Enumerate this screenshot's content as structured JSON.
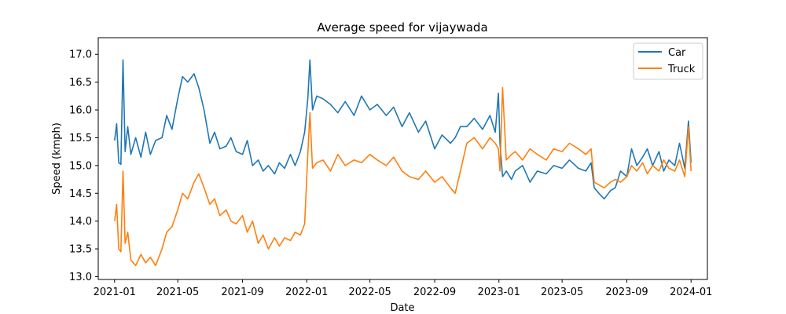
{
  "chart_data": {
    "type": "line",
    "title": "Average speed for vijaywada",
    "xlabel": "Date",
    "ylabel": "Speed (kmph)",
    "x_axis_type": "date",
    "xlim": [
      "2020-12-01",
      "2024-02-01"
    ],
    "ylim": [
      12.95,
      17.3
    ],
    "x_ticks": [
      "2021-01",
      "2021-05",
      "2021-09",
      "2022-01",
      "2022-05",
      "2022-09",
      "2023-01",
      "2023-05",
      "2023-09",
      "2024-01"
    ],
    "y_ticks": [
      "13.0",
      "13.5",
      "14.0",
      "14.5",
      "15.0",
      "15.5",
      "16.0",
      "16.5",
      "17.0"
    ],
    "grid": false,
    "legend_position": "top-right",
    "series": [
      {
        "name": "Car",
        "color": "#1f77b4",
        "x": [
          "2021-01-01",
          "2021-01-05",
          "2021-01-09",
          "2021-01-13",
          "2021-01-17",
          "2021-01-21",
          "2021-01-26",
          "2021-02-01",
          "2021-02-10",
          "2021-02-20",
          "2021-03-01",
          "2021-03-10",
          "2021-03-20",
          "2021-04-01",
          "2021-04-10",
          "2021-04-20",
          "2021-05-01",
          "2021-05-10",
          "2021-05-20",
          "2021-06-01",
          "2021-06-10",
          "2021-06-20",
          "2021-07-01",
          "2021-07-10",
          "2021-07-20",
          "2021-08-01",
          "2021-08-10",
          "2021-08-20",
          "2021-09-01",
          "2021-09-10",
          "2021-09-20",
          "2021-10-01",
          "2021-10-10",
          "2021-10-20",
          "2021-11-01",
          "2021-11-10",
          "2021-11-20",
          "2021-12-01",
          "2021-12-10",
          "2021-12-20",
          "2021-12-28",
          "2022-01-03",
          "2022-01-07",
          "2022-01-12",
          "2022-01-20",
          "2022-02-01",
          "2022-02-15",
          "2022-03-01",
          "2022-03-15",
          "2022-04-01",
          "2022-04-15",
          "2022-05-01",
          "2022-05-15",
          "2022-06-01",
          "2022-06-15",
          "2022-07-01",
          "2022-07-15",
          "2022-08-01",
          "2022-08-15",
          "2022-09-01",
          "2022-09-15",
          "2022-10-01",
          "2022-10-10",
          "2022-10-20",
          "2022-11-01",
          "2022-11-15",
          "2022-12-01",
          "2022-12-15",
          "2022-12-25",
          "2022-12-31",
          "2023-01-03",
          "2023-01-08",
          "2023-01-15",
          "2023-01-25",
          "2023-02-01",
          "2023-02-15",
          "2023-03-01",
          "2023-03-15",
          "2023-04-01",
          "2023-04-15",
          "2023-05-01",
          "2023-05-15",
          "2023-06-01",
          "2023-06-15",
          "2023-06-25",
          "2023-07-01",
          "2023-07-10",
          "2023-07-20",
          "2023-08-01",
          "2023-08-10",
          "2023-08-20",
          "2023-09-01",
          "2023-09-10",
          "2023-09-20",
          "2023-10-01",
          "2023-10-10",
          "2023-10-20",
          "2023-11-01",
          "2023-11-10",
          "2023-11-20",
          "2023-12-01",
          "2023-12-10",
          "2023-12-20",
          "2023-12-27",
          "2024-01-01"
        ],
        "y": [
          15.45,
          15.75,
          15.05,
          15.02,
          16.9,
          15.25,
          15.7,
          15.2,
          15.5,
          15.15,
          15.6,
          15.2,
          15.45,
          15.5,
          15.9,
          15.65,
          16.2,
          16.6,
          16.5,
          16.65,
          16.4,
          16.0,
          15.4,
          15.6,
          15.3,
          15.35,
          15.5,
          15.25,
          15.2,
          15.45,
          15.0,
          15.1,
          14.9,
          15.0,
          14.85,
          15.05,
          14.95,
          15.2,
          15.0,
          15.25,
          15.6,
          16.2,
          16.9,
          16.0,
          16.25,
          16.2,
          16.1,
          15.95,
          16.15,
          15.9,
          16.25,
          16.0,
          16.1,
          15.9,
          16.05,
          15.7,
          15.95,
          15.6,
          15.8,
          15.3,
          15.55,
          15.4,
          15.5,
          15.7,
          15.7,
          15.85,
          15.65,
          15.9,
          15.6,
          16.3,
          15.4,
          14.8,
          14.9,
          14.75,
          14.9,
          15.0,
          14.7,
          14.9,
          14.85,
          15.0,
          14.95,
          15.1,
          14.95,
          14.9,
          15.05,
          14.6,
          14.5,
          14.4,
          14.55,
          14.6,
          14.9,
          14.8,
          15.3,
          15.0,
          15.15,
          15.3,
          15.0,
          15.25,
          14.9,
          15.1,
          15.0,
          15.4,
          14.95,
          15.8,
          15.05
        ]
      },
      {
        "name": "Truck",
        "color": "#ff7f0e",
        "x": [
          "2021-01-01",
          "2021-01-05",
          "2021-01-09",
          "2021-01-13",
          "2021-01-17",
          "2021-01-21",
          "2021-01-26",
          "2021-02-01",
          "2021-02-10",
          "2021-02-20",
          "2021-03-01",
          "2021-03-10",
          "2021-03-20",
          "2021-04-01",
          "2021-04-10",
          "2021-04-20",
          "2021-05-01",
          "2021-05-10",
          "2021-05-20",
          "2021-06-01",
          "2021-06-10",
          "2021-06-20",
          "2021-07-01",
          "2021-07-10",
          "2021-07-20",
          "2021-08-01",
          "2021-08-10",
          "2021-08-20",
          "2021-09-01",
          "2021-09-10",
          "2021-09-20",
          "2021-10-01",
          "2021-10-10",
          "2021-10-20",
          "2021-11-01",
          "2021-11-10",
          "2021-11-20",
          "2021-12-01",
          "2021-12-10",
          "2021-12-20",
          "2021-12-28",
          "2022-01-03",
          "2022-01-07",
          "2022-01-12",
          "2022-01-20",
          "2022-02-01",
          "2022-02-15",
          "2022-03-01",
          "2022-03-15",
          "2022-04-01",
          "2022-04-15",
          "2022-05-01",
          "2022-05-15",
          "2022-06-01",
          "2022-06-15",
          "2022-07-01",
          "2022-07-15",
          "2022-08-01",
          "2022-08-15",
          "2022-09-01",
          "2022-09-15",
          "2022-10-01",
          "2022-10-10",
          "2022-10-20",
          "2022-11-01",
          "2022-11-15",
          "2022-12-01",
          "2022-12-15",
          "2022-12-25",
          "2022-12-31",
          "2023-01-03",
          "2023-01-08",
          "2023-01-15",
          "2023-01-25",
          "2023-02-01",
          "2023-02-15",
          "2023-03-01",
          "2023-03-15",
          "2023-04-01",
          "2023-04-15",
          "2023-05-01",
          "2023-05-15",
          "2023-06-01",
          "2023-06-15",
          "2023-06-25",
          "2023-07-01",
          "2023-07-10",
          "2023-07-20",
          "2023-08-01",
          "2023-08-10",
          "2023-08-20",
          "2023-09-01",
          "2023-09-10",
          "2023-09-20",
          "2023-10-01",
          "2023-10-10",
          "2023-10-20",
          "2023-11-01",
          "2023-11-10",
          "2023-11-20",
          "2023-12-01",
          "2023-12-10",
          "2023-12-20",
          "2023-12-27",
          "2024-01-01"
        ],
        "y": [
          14.0,
          14.3,
          13.5,
          13.45,
          14.9,
          13.6,
          13.8,
          13.3,
          13.2,
          13.4,
          13.25,
          13.35,
          13.2,
          13.5,
          13.8,
          13.9,
          14.2,
          14.5,
          14.4,
          14.7,
          14.85,
          14.6,
          14.3,
          14.4,
          14.1,
          14.2,
          14.0,
          13.95,
          14.1,
          13.8,
          14.0,
          13.6,
          13.75,
          13.5,
          13.7,
          13.55,
          13.7,
          13.65,
          13.8,
          13.75,
          13.95,
          15.2,
          15.95,
          14.95,
          15.05,
          15.1,
          14.9,
          15.2,
          15.0,
          15.1,
          15.05,
          15.2,
          15.1,
          15.0,
          15.15,
          14.9,
          14.8,
          14.75,
          14.9,
          14.7,
          14.8,
          14.6,
          14.5,
          14.9,
          15.4,
          15.5,
          15.3,
          15.5,
          15.4,
          15.3,
          14.9,
          16.4,
          15.1,
          15.2,
          15.25,
          15.1,
          15.3,
          15.2,
          15.1,
          15.3,
          15.25,
          15.4,
          15.3,
          15.2,
          15.3,
          14.7,
          14.65,
          14.6,
          14.7,
          14.75,
          14.7,
          14.8,
          15.0,
          14.9,
          15.05,
          14.85,
          15.0,
          14.9,
          15.1,
          14.95,
          14.9,
          15.1,
          14.8,
          15.7,
          14.9
        ]
      }
    ]
  }
}
